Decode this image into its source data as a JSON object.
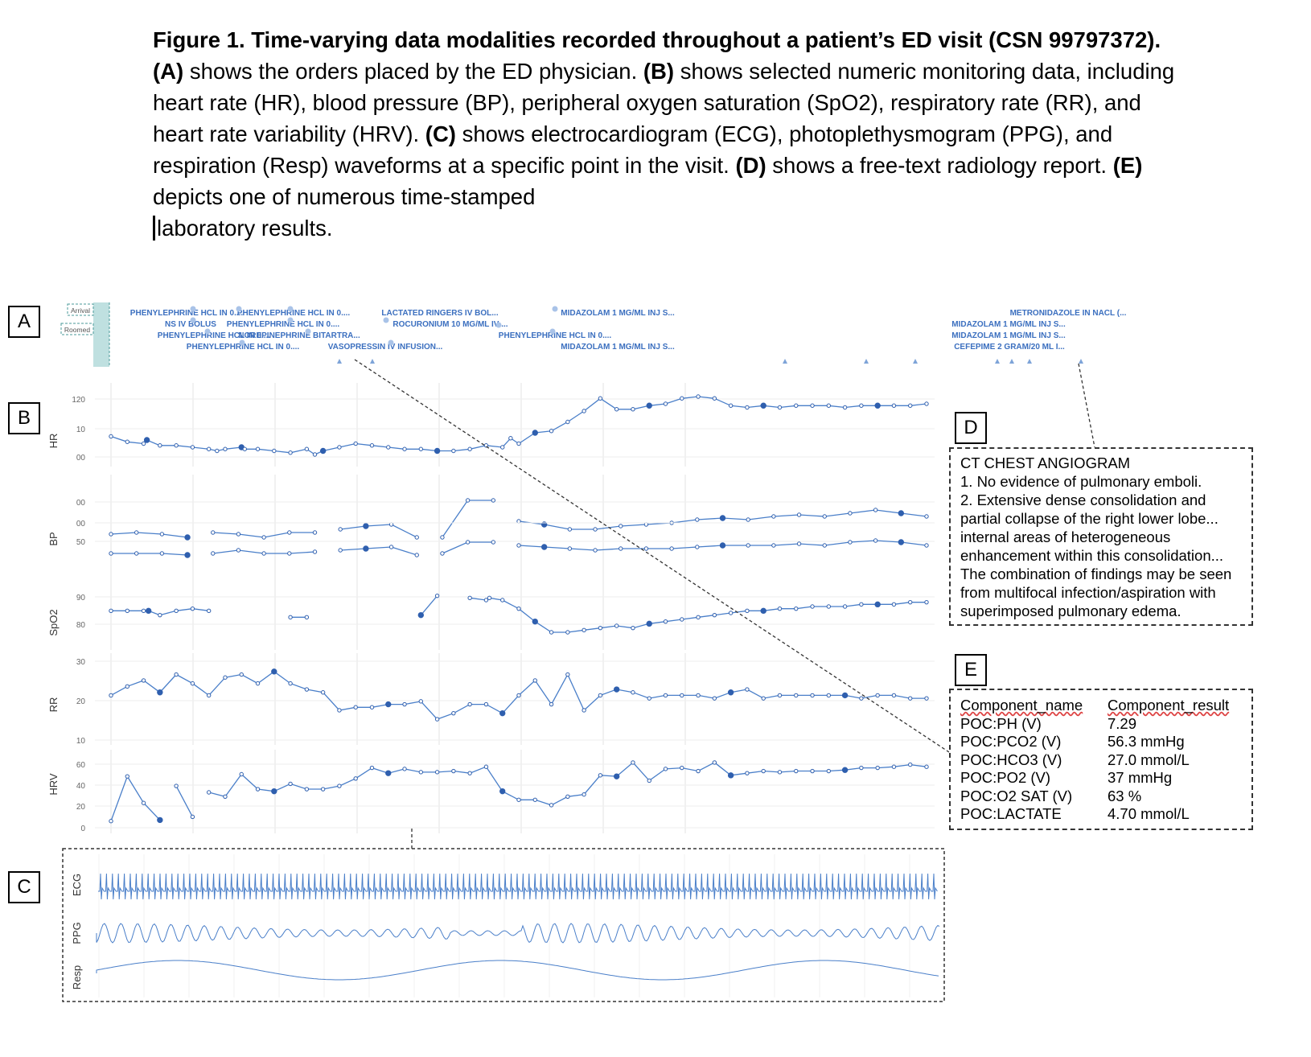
{
  "caption": {
    "fig_label": "Figure 1. Time-varying data modalities recorded throughout a patient’s ED visit (CSN 99797372).",
    "a_label": "(A)",
    "a_text": "shows the orders placed by the ED physician.",
    "b_label": "(B)",
    "b_text": "shows selected numeric monitoring data, including heart rate (HR), blood pressure (BP), peripheral oxygen saturation (SpO2), respiratory rate (RR), and heart rate variability (HRV).",
    "c_label": "(C)",
    "c_text": "shows electrocardiogram (ECG), photoplethysmogram (PPG), and respiration (Resp) waveforms at a specific point in the visit.",
    "d_label": "(D)",
    "d_text": "shows a free-text radiology report.",
    "e_label": "(E)",
    "e_text": "depicts one of numerous time-stamped",
    "e_text2": "laboratory results."
  },
  "panel_labels": {
    "a": "A",
    "b": "B",
    "c": "C",
    "d": "D",
    "e": "E"
  },
  "orders": {
    "arrival": "Arrival",
    "roomed": "Roomed",
    "items": [
      "PHENYLEPHRINE HCL IN 0....",
      "PHENYLEPHRINE HCL IN 0....",
      "NS IV BOLUS",
      "PHENYLEPHRINE HCL IN 0....",
      "PHENYLEPHRINE HCL IN 0....",
      "NOREPINEPHRINE BITARTRA...",
      "PHENYLEPHRINE HCL IN 0....",
      "VASOPRESSIN IV INFUSION...",
      "LACTATED RINGERS IV BOL...",
      "ROCURONIUM 10 MG/ML IV ...",
      "MIDAZOLAM 1 MG/ML INJ S...",
      "PHENYLEPHRINE HCL IN 0....",
      "MIDAZOLAM 1 MG/ML INJ S...",
      "METRONIDAZOLE IN NACL (...",
      "MIDAZOLAM 1 MG/ML INJ S...",
      "MIDAZOLAM 1 MG/ML INJ S...",
      "CEFEPIME 2 GRAM/20 ML I..."
    ]
  },
  "radiology": {
    "title": "CT CHEST ANGIOGRAM",
    "lines": [
      "1. No evidence of pulmonary emboli.",
      "2. Extensive dense consolidation and",
      "partial collapse of the right lower lobe...",
      "internal areas of heterogeneous",
      "enhancement within this consolidation...",
      "The combination of findings may be seen",
      "from multifocal infection/aspiration with",
      "superimposed pulmonary edema."
    ]
  },
  "labs": {
    "header_name": "Component_name",
    "header_result": "Component_result",
    "rows": [
      {
        "name": "POC:PH (V)",
        "result": "7.29"
      },
      {
        "name": "POC:PCO2 (V)",
        "result": "56.3 mmHg"
      },
      {
        "name": "POC:HCO3 (V)",
        "result": "27.0 mmol/L"
      },
      {
        "name": "POC:PO2 (V)",
        "result": "37 mmHg"
      },
      {
        "name": "POC:O2 SAT (V)",
        "result": "63 %"
      },
      {
        "name": "POC:LACTATE",
        "result": "4.70 mmol/L"
      }
    ]
  },
  "colors": {
    "series": "#4a7fc9",
    "series_dark": "#2f5fae",
    "label": "#3b6fbf",
    "grid": "#e3e3e3",
    "room_fill": "#bfe0e0"
  },
  "chart_data": [
    {
      "type": "line",
      "ylabel": "HR",
      "ticks": [
        "120",
        "10",
        "00"
      ],
      "x": [
        0,
        1,
        2,
        2.2,
        3,
        4,
        5,
        6,
        6.5,
        7,
        8,
        8.2,
        9,
        10,
        11,
        12,
        12.5,
        13,
        14,
        15,
        16,
        17,
        18,
        19,
        20,
        21,
        22,
        23,
        24,
        24.5,
        25,
        26,
        27,
        28,
        29,
        30,
        31,
        32,
        33,
        34,
        35,
        36,
        37,
        38,
        39,
        40,
        41,
        42,
        43,
        44,
        45,
        46,
        47,
        48,
        49,
        50
      ],
      "values": [
        104,
        101,
        100,
        102,
        99,
        99,
        98,
        97,
        96,
        97,
        98,
        97,
        97,
        96,
        95,
        97,
        94,
        96,
        98,
        100,
        99,
        98,
        97,
        97,
        96,
        96,
        97,
        99,
        98,
        103,
        100,
        106,
        107,
        112,
        118,
        125,
        119,
        119,
        121,
        122,
        125,
        126,
        125,
        121,
        120,
        121,
        120,
        121,
        121,
        121,
        120,
        121,
        121,
        121,
        121,
        122
      ]
    },
    {
      "type": "line",
      "ylabel": "BP",
      "ticks": [
        "00",
        "50"
      ],
      "series": [
        {
          "name": "",
          "values": [
            57,
            58,
            57,
            55,
            58,
            57,
            55,
            58,
            58,
            60,
            62,
            63,
            55,
            55,
            78,
            78,
            65,
            63,
            60,
            60,
            62,
            63,
            64,
            66,
            67,
            66,
            68,
            69,
            68,
            70,
            72,
            70,
            68
          ]
        },
        {
          "name": "",
          "values": [
            45,
            45,
            45,
            44,
            45,
            47,
            45,
            45,
            46,
            47,
            48,
            49,
            44,
            45,
            52,
            52,
            50,
            49,
            48,
            47,
            48,
            48,
            48,
            49,
            50,
            50,
            50,
            51,
            50,
            52,
            53,
            52,
            50
          ]
        }
      ]
    },
    {
      "type": "line",
      "ylabel": "SpO2",
      "ticks": [
        "00",
        "90",
        "80"
      ],
      "x": [
        0,
        1,
        2,
        2.3,
        3,
        4,
        5,
        6,
        11,
        12,
        19,
        20,
        22,
        23,
        23.2,
        24,
        25,
        26,
        27,
        28,
        29,
        30,
        31,
        32,
        33,
        34,
        35,
        36,
        37,
        38,
        39,
        40,
        41,
        42,
        43,
        44,
        45,
        46,
        47,
        48,
        49,
        50
      ],
      "values": [
        86,
        86,
        86,
        86,
        84,
        86,
        87,
        86,
        83,
        83,
        84,
        93,
        92,
        91,
        92,
        91,
        87,
        81,
        76,
        76,
        77,
        78,
        79,
        78,
        80,
        81,
        82,
        83,
        84,
        85,
        86,
        86,
        87,
        87,
        88,
        88,
        88,
        89,
        89,
        89,
        90,
        90
      ]
    },
    {
      "type": "line",
      "ylabel": "RR",
      "ticks": [
        "30",
        "20",
        "10"
      ],
      "x": [
        0,
        1,
        2,
        3,
        4,
        5,
        6,
        7,
        8,
        9,
        10,
        11,
        12,
        13,
        14,
        15,
        16,
        17,
        18,
        19,
        20,
        21,
        22,
        23,
        24,
        25,
        26,
        27,
        28,
        29,
        30,
        31,
        32,
        33,
        34,
        35,
        36,
        37,
        38,
        39,
        40,
        41,
        42,
        43,
        44,
        45,
        46,
        47,
        48,
        49,
        50
      ],
      "values": [
        20,
        23,
        25,
        21,
        27,
        24,
        20,
        26,
        27,
        24,
        28,
        24,
        22,
        21,
        15,
        16,
        16,
        17,
        17,
        18,
        12,
        14,
        17,
        17,
        14,
        20,
        25,
        17,
        27,
        15,
        20,
        22,
        21,
        19,
        20,
        20,
        20,
        19,
        21,
        22,
        19,
        20,
        20,
        20,
        20,
        20,
        19,
        20,
        20,
        19,
        19
      ]
    },
    {
      "type": "line",
      "ylabel": "HRV",
      "ticks": [
        "60",
        "40",
        "20",
        "0"
      ],
      "x": [
        0,
        1,
        2,
        3,
        4,
        5,
        6,
        7,
        8,
        9,
        10,
        11,
        12,
        13,
        14,
        15,
        16,
        17,
        18,
        19,
        20,
        21,
        22,
        23,
        24,
        25,
        26,
        27,
        28,
        29,
        30,
        31,
        32,
        33,
        34,
        35,
        36,
        37,
        38,
        39,
        40,
        41,
        42,
        43,
        44,
        45,
        46,
        47,
        48,
        49,
        50
      ],
      "values": [
        5,
        47,
        22,
        6,
        38,
        9,
        32,
        28,
        49,
        35,
        33,
        40,
        35,
        35,
        38,
        45,
        55,
        50,
        54,
        51,
        51,
        52,
        50,
        56,
        33,
        25,
        25,
        20,
        28,
        30,
        48,
        47,
        60,
        43,
        54,
        55,
        52,
        60,
        48,
        50,
        52,
        51,
        52,
        52,
        52,
        53,
        55,
        55,
        56,
        58,
        56
      ]
    }
  ],
  "waveforms": {
    "labels": [
      "ECG",
      "PPG",
      "Resp"
    ]
  }
}
